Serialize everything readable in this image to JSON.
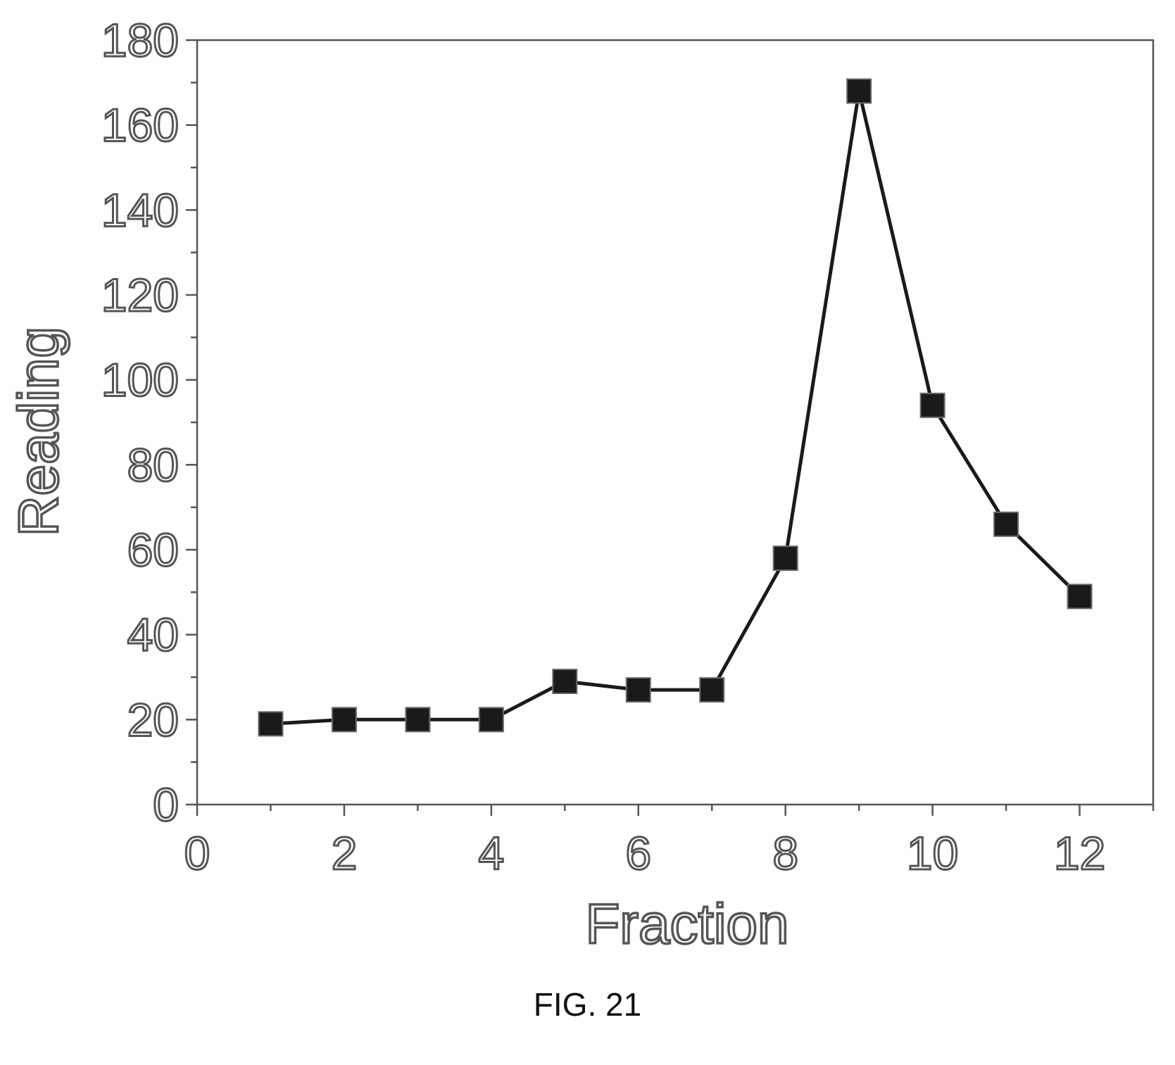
{
  "figure": {
    "caption": "FIG. 21"
  },
  "chart_data": {
    "type": "line",
    "title": "",
    "xlabel": "Fraction",
    "ylabel": "Reading",
    "xlim": [
      0,
      13
    ],
    "ylim": [
      0,
      180
    ],
    "xticks": [
      0,
      2,
      4,
      6,
      8,
      10,
      12
    ],
    "yticks": [
      0,
      20,
      40,
      60,
      80,
      100,
      120,
      140,
      160,
      180
    ],
    "grid": false,
    "legend": "none",
    "marker": "square",
    "colors": {
      "line": "#1a1a1a",
      "marker": "#1a1a1a",
      "frame": "#555555"
    },
    "series": [
      {
        "x": [
          1,
          2,
          3,
          4,
          5,
          6,
          7,
          8,
          9,
          10,
          11,
          12
        ],
        "values": [
          19,
          20,
          20,
          20,
          29,
          27,
          27,
          58,
          168,
          94,
          66,
          49
        ]
      }
    ]
  }
}
